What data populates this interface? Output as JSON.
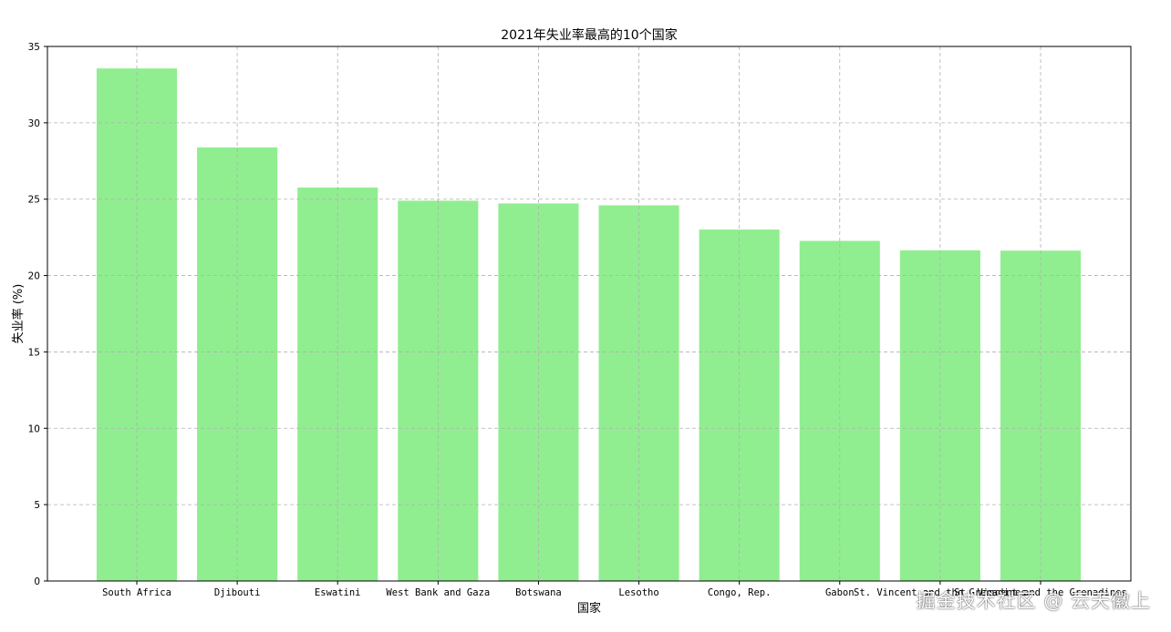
{
  "chart_data": {
    "type": "bar",
    "title": "2021年失业率最高的10个国家",
    "xlabel": "国家",
    "ylabel": "失业率 (%)",
    "categories": [
      "South Africa",
      "Djibouti",
      "Eswatini",
      "West Bank and Gaza",
      "Botswana",
      "Lesotho",
      "Congo, Rep.",
      "Gabon",
      "St. Vincent and the Grenadines",
      "St. Vincent and the Grenadines"
    ],
    "values": [
      33.56,
      28.39,
      25.76,
      24.9,
      24.72,
      24.6,
      23.01,
      22.27,
      21.65,
      21.63
    ],
    "ylim": [
      0,
      35
    ],
    "yticks": [
      0,
      5,
      10,
      15,
      20,
      25,
      30,
      35
    ],
    "bar_color": "#90ee90",
    "grid": true
  },
  "watermark": "掘金技术社区 @ 云天徽上"
}
